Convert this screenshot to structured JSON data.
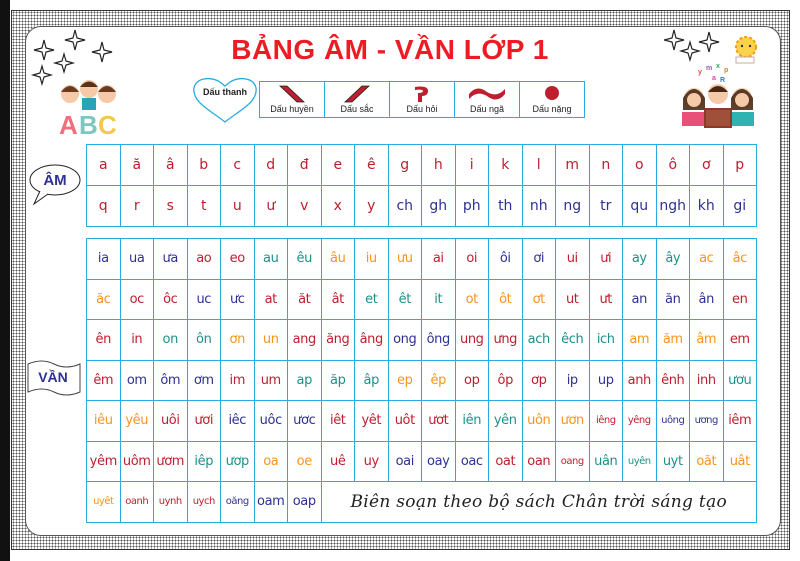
{
  "title": "BẢNG ÂM - VẦN LỚP 1",
  "tones": {
    "label": "Dấu thanh",
    "items": [
      {
        "name": "Dấu huyền",
        "icon": "grave-accent-icon"
      },
      {
        "name": "Dấu sắc",
        "icon": "acute-accent-icon"
      },
      {
        "name": "Dấu hỏi",
        "icon": "hook-above-icon"
      },
      {
        "name": "Dấu ngã",
        "icon": "tilde-icon"
      },
      {
        "name": "Dấu nặng",
        "icon": "dot-below-icon"
      }
    ],
    "color": "#be1e2d"
  },
  "am": {
    "label": "ÂM",
    "rows": [
      [
        [
          "a",
          "red"
        ],
        [
          "ă",
          "red"
        ],
        [
          "â",
          "red"
        ],
        [
          "b",
          "red"
        ],
        [
          "c",
          "red"
        ],
        [
          "d",
          "red"
        ],
        [
          "đ",
          "red"
        ],
        [
          "e",
          "red"
        ],
        [
          "ê",
          "red"
        ],
        [
          "g",
          "red"
        ],
        [
          "h",
          "red"
        ],
        [
          "i",
          "red"
        ],
        [
          "k",
          "red"
        ],
        [
          "l",
          "red"
        ],
        [
          "m",
          "red"
        ],
        [
          "n",
          "red"
        ],
        [
          "o",
          "red"
        ],
        [
          "ô",
          "red"
        ],
        [
          "ơ",
          "red"
        ],
        [
          "p",
          "red"
        ]
      ],
      [
        [
          "q",
          "red"
        ],
        [
          "r",
          "red"
        ],
        [
          "s",
          "red"
        ],
        [
          "t",
          "red"
        ],
        [
          "u",
          "red"
        ],
        [
          "ư",
          "red"
        ],
        [
          "v",
          "red"
        ],
        [
          "x",
          "red"
        ],
        [
          "y",
          "red"
        ],
        [
          "ch",
          "navy"
        ],
        [
          "gh",
          "navy"
        ],
        [
          "ph",
          "navy"
        ],
        [
          "th",
          "navy"
        ],
        [
          "nh",
          "navy"
        ],
        [
          "ng",
          "navy"
        ],
        [
          "tr",
          "navy"
        ],
        [
          "qu",
          "navy"
        ],
        [
          "ngh",
          "navy"
        ],
        [
          "kh",
          "navy"
        ],
        [
          "gi",
          "navy"
        ]
      ]
    ]
  },
  "van": {
    "label": "VẦN",
    "rows": [
      [
        [
          "ia",
          "navy"
        ],
        [
          "ua",
          "navy"
        ],
        [
          "ưa",
          "navy"
        ],
        [
          "ao",
          "red"
        ],
        [
          "eo",
          "red"
        ],
        [
          "au",
          "teal"
        ],
        [
          "êu",
          "teal"
        ],
        [
          "âu",
          "orange"
        ],
        [
          "iu",
          "orange"
        ],
        [
          "ưu",
          "orange"
        ],
        [
          "ai",
          "red"
        ],
        [
          "oi",
          "red"
        ],
        [
          "ôi",
          "navy"
        ],
        [
          "ơi",
          "navy"
        ],
        [
          "ui",
          "red"
        ],
        [
          "ưi",
          "red"
        ],
        [
          "ay",
          "teal"
        ],
        [
          "ây",
          "teal"
        ],
        [
          "ac",
          "orange"
        ],
        [
          "âc",
          "orange"
        ]
      ],
      [
        [
          "ăc",
          "orange"
        ],
        [
          "oc",
          "red"
        ],
        [
          "ôc",
          "red"
        ],
        [
          "uc",
          "navy"
        ],
        [
          "ưc",
          "navy"
        ],
        [
          "at",
          "red"
        ],
        [
          "ăt",
          "red"
        ],
        [
          "ât",
          "red"
        ],
        [
          "et",
          "teal"
        ],
        [
          "êt",
          "teal"
        ],
        [
          "it",
          "teal"
        ],
        [
          "ot",
          "orange"
        ],
        [
          "ôt",
          "orange"
        ],
        [
          "ơt",
          "orange"
        ],
        [
          "ut",
          "red"
        ],
        [
          "ưt",
          "red"
        ],
        [
          "an",
          "navy"
        ],
        [
          "ăn",
          "navy"
        ],
        [
          "ân",
          "navy"
        ],
        [
          "en",
          "red"
        ]
      ],
      [
        [
          "ên",
          "red"
        ],
        [
          "in",
          "red"
        ],
        [
          "on",
          "teal"
        ],
        [
          "ôn",
          "teal"
        ],
        [
          "ơn",
          "orange"
        ],
        [
          "un",
          "orange"
        ],
        [
          "ang",
          "red"
        ],
        [
          "ăng",
          "red"
        ],
        [
          "âng",
          "red"
        ],
        [
          "ong",
          "navy"
        ],
        [
          "ông",
          "navy"
        ],
        [
          "ung",
          "red"
        ],
        [
          "ưng",
          "red"
        ],
        [
          "ach",
          "teal"
        ],
        [
          "êch",
          "teal"
        ],
        [
          "ich",
          "teal"
        ],
        [
          "am",
          "orange"
        ],
        [
          "ăm",
          "orange"
        ],
        [
          "âm",
          "orange"
        ],
        [
          "em",
          "red"
        ]
      ],
      [
        [
          "êm",
          "red"
        ],
        [
          "om",
          "navy"
        ],
        [
          "ôm",
          "navy"
        ],
        [
          "ơm",
          "navy"
        ],
        [
          "im",
          "red"
        ],
        [
          "um",
          "red"
        ],
        [
          "ap",
          "teal"
        ],
        [
          "ăp",
          "teal"
        ],
        [
          "âp",
          "teal"
        ],
        [
          "ep",
          "orange"
        ],
        [
          "êp",
          "orange"
        ],
        [
          "op",
          "red"
        ],
        [
          "ôp",
          "red"
        ],
        [
          "ơp",
          "red"
        ],
        [
          "ip",
          "navy"
        ],
        [
          "up",
          "navy"
        ],
        [
          "anh",
          "red"
        ],
        [
          "ênh",
          "red"
        ],
        [
          "inh",
          "red"
        ],
        [
          "ươu",
          "teal"
        ]
      ],
      [
        [
          "iêu",
          "orange"
        ],
        [
          "yêu",
          "orange"
        ],
        [
          "uôi",
          "red"
        ],
        [
          "ươi",
          "red"
        ],
        [
          "iêc",
          "navy"
        ],
        [
          "uôc",
          "navy"
        ],
        [
          "ươc",
          "navy"
        ],
        [
          "iêt",
          "red"
        ],
        [
          "yêt",
          "red"
        ],
        [
          "uôt",
          "red"
        ],
        [
          "ươt",
          "red"
        ],
        [
          "iên",
          "teal"
        ],
        [
          "yên",
          "teal"
        ],
        [
          "uôn",
          "orange"
        ],
        [
          "ươn",
          "orange"
        ],
        [
          "iêng",
          "red"
        ],
        [
          "yêng",
          "red"
        ],
        [
          "uông",
          "navy"
        ],
        [
          "ương",
          "navy"
        ],
        [
          "iêm",
          "red"
        ]
      ],
      [
        [
          "yêm",
          "red"
        ],
        [
          "uôm",
          "red"
        ],
        [
          "ươm",
          "red"
        ],
        [
          "iêp",
          "teal"
        ],
        [
          "ươp",
          "teal"
        ],
        [
          "oa",
          "orange"
        ],
        [
          "oe",
          "orange"
        ],
        [
          "uê",
          "red"
        ],
        [
          "uy",
          "red"
        ],
        [
          "oai",
          "navy"
        ],
        [
          "oay",
          "navy"
        ],
        [
          "oac",
          "navy"
        ],
        [
          "oat",
          "red"
        ],
        [
          "oan",
          "red"
        ],
        [
          "oang",
          "red"
        ],
        [
          "uân",
          "teal"
        ],
        [
          "uyên",
          "teal"
        ],
        [
          "uyt",
          "teal"
        ],
        [
          "oăt",
          "orange"
        ],
        [
          "uât",
          "orange"
        ]
      ],
      [
        [
          "uyêt",
          "orange"
        ],
        [
          "oanh",
          "red"
        ],
        [
          "uynh",
          "red"
        ],
        [
          "uych",
          "red"
        ],
        [
          "oăng",
          "navy"
        ],
        [
          "oam",
          "navy"
        ],
        [
          "oap",
          "navy"
        ]
      ]
    ],
    "footer": "Biên soạn theo bộ sách Chân trời sáng tạo"
  },
  "colors": {
    "red": "#be1e2d",
    "navy": "#2e3192",
    "teal": "#1b918a",
    "orange": "#f7941d",
    "title": "#ed1c24",
    "grid": "#29abe2"
  },
  "decorations": [
    "sparkle-icon",
    "kids-abc-illustration",
    "kids-reading-illustration",
    "sun-icon"
  ]
}
